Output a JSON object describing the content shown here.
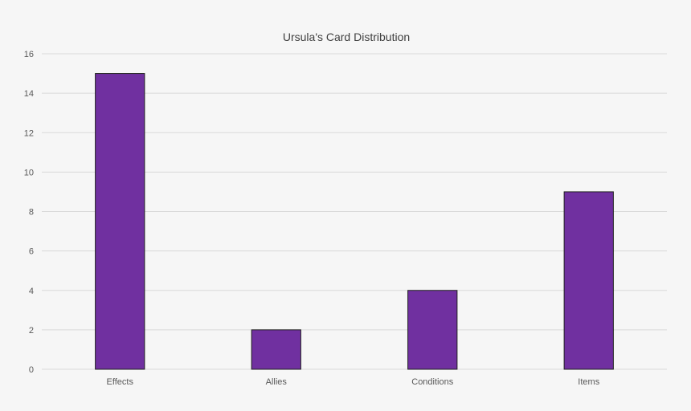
{
  "chart_data": {
    "type": "bar",
    "title": "Ursula's Card Distribution",
    "categories": [
      "Effects",
      "Allies",
      "Conditions",
      "Items"
    ],
    "values": [
      15,
      2,
      4,
      9
    ],
    "ylim": [
      0,
      16
    ],
    "yticks": [
      0,
      2,
      4,
      6,
      8,
      10,
      12,
      14,
      16
    ],
    "xlabel": "",
    "ylabel": "",
    "grid": true,
    "legend": "none",
    "colors": {
      "bar_fill": "#7030a0",
      "bar_stroke": "#1f1f1f",
      "gridline": "#d9d9d9",
      "background": "#f6f6f6"
    }
  }
}
